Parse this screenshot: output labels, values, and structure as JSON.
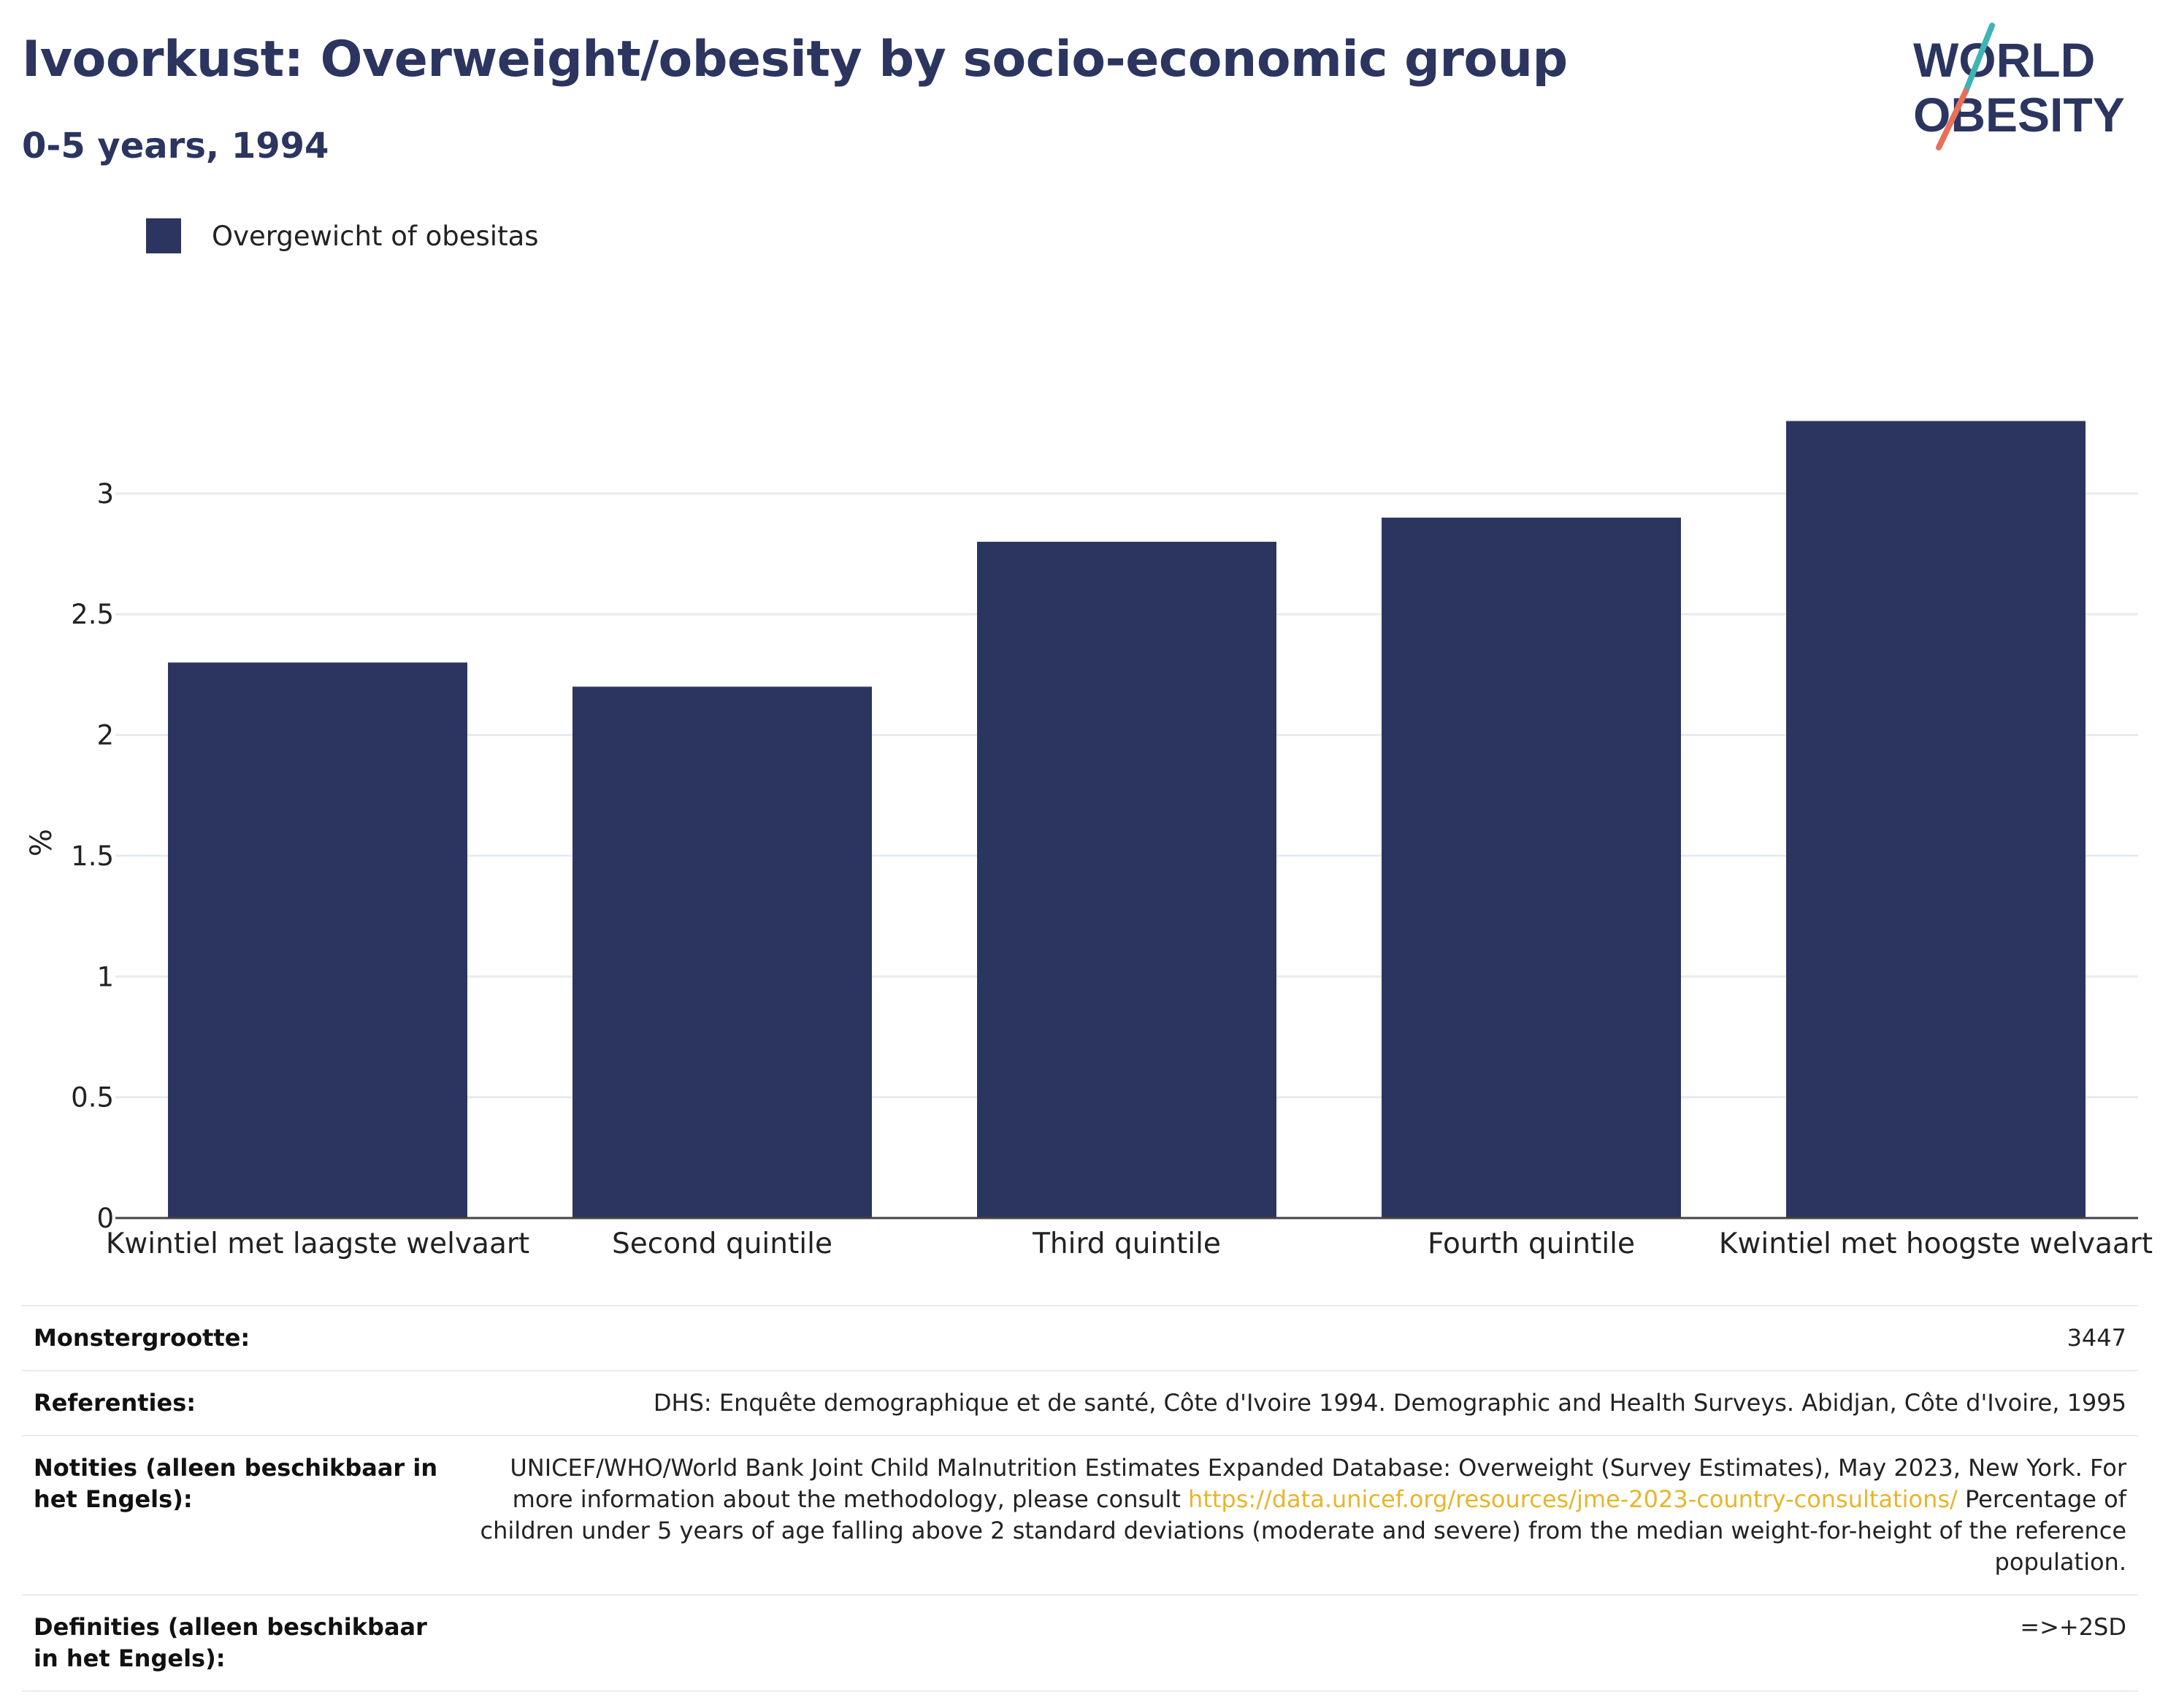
{
  "header": {
    "title": "Ivoorkust: Overweight/obesity by socio-economic group",
    "subtitle": "0-5 years, 1994"
  },
  "logo": {
    "line1": "WORLD",
    "line2": "OBESITY"
  },
  "colors": {
    "bar": "#2b3560",
    "title": "#2b3560",
    "link": "#e8b52a",
    "logo_teal": "#3fb4b4",
    "logo_coral": "#e8705a",
    "grid": "#e6ebf0"
  },
  "chart_data": {
    "type": "bar",
    "categories": [
      "Kwintiel met laagste welvaart",
      "Second quintile",
      "Third quintile",
      "Fourth quintile",
      "Kwintiel met hoogste welvaart"
    ],
    "series": [
      {
        "name": "Overgewicht of obesitas",
        "values": [
          2.3,
          2.2,
          2.8,
          2.9,
          3.3
        ]
      }
    ],
    "ylabel": "%",
    "ylim": [
      0,
      3.35
    ],
    "yticks": [
      "0",
      "0.5",
      "1",
      "1.5",
      "2",
      "2.5",
      "3"
    ],
    "grid": true,
    "legend": "top-left"
  },
  "info": [
    {
      "label": "Monstergrootte:",
      "value": "3447"
    },
    {
      "label": "Referenties:",
      "value": "DHS: Enquête demographique et de santé, Côte d'Ivoire 1994. Demographic and Health Surveys. Abidjan, Côte d'Ivoire, 1995"
    },
    {
      "label": "Notities (alleen beschikbaar in het Engels):",
      "value_pre": "UNICEF/WHO/World Bank Joint Child Malnutrition Estimates Expanded Database: Overweight (Survey Estimates), May 2023, New York. For more information about the methodology, please consult ",
      "value_link": "https://data.unicef.org/resources/jme-2023-country-consultations/",
      "value_post": " Percentage of children under 5 years of age falling above 2 standard deviations (moderate and severe) from the median weight-for-height of the reference population."
    },
    {
      "label": "Definities (alleen beschikbaar in het Engels):",
      "value": "=>+2SD"
    }
  ]
}
